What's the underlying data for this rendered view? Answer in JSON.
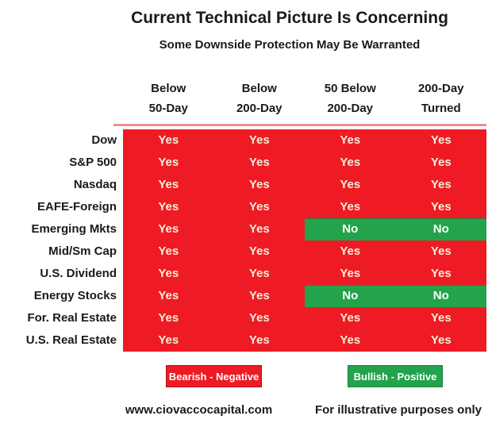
{
  "title": "Current Technical Picture Is Concerning",
  "subtitle": "Some Downside Protection May Be Warranted",
  "chart_data": {
    "type": "table",
    "title": "Current Technical Picture Is Concerning",
    "subtitle": "Some Downside Protection May Be Warranted",
    "columns": [
      "Below 50-Day",
      "Below 200-Day",
      "50 Below 200-Day",
      "200-Day Turned"
    ],
    "column_lines": [
      [
        "Below",
        "50-Day"
      ],
      [
        "Below",
        "200-Day"
      ],
      [
        "50 Below",
        "200-Day"
      ],
      [
        "200-Day",
        "Turned"
      ]
    ],
    "rows": [
      {
        "label": "Dow",
        "values": [
          "Yes",
          "Yes",
          "Yes",
          "Yes"
        ]
      },
      {
        "label": "S&P 500",
        "values": [
          "Yes",
          "Yes",
          "Yes",
          "Yes"
        ]
      },
      {
        "label": "Nasdaq",
        "values": [
          "Yes",
          "Yes",
          "Yes",
          "Yes"
        ]
      },
      {
        "label": "EAFE-Foreign",
        "values": [
          "Yes",
          "Yes",
          "Yes",
          "Yes"
        ]
      },
      {
        "label": "Emerging Mkts",
        "values": [
          "Yes",
          "Yes",
          "No",
          "No"
        ]
      },
      {
        "label": "Mid/Sm Cap",
        "values": [
          "Yes",
          "Yes",
          "Yes",
          "Yes"
        ]
      },
      {
        "label": "U.S. Dividend",
        "values": [
          "Yes",
          "Yes",
          "Yes",
          "Yes"
        ]
      },
      {
        "label": "Energy Stocks",
        "values": [
          "Yes",
          "Yes",
          "No",
          "No"
        ]
      },
      {
        "label": "For. Real Estate",
        "values": [
          "Yes",
          "Yes",
          "Yes",
          "Yes"
        ]
      },
      {
        "label": "U.S. Real Estate",
        "values": [
          "Yes",
          "Yes",
          "Yes",
          "Yes"
        ]
      }
    ],
    "cell_semantics": {
      "Yes": "bearish",
      "No": "bullish"
    },
    "legend": [
      {
        "label": "Bearish - Negative",
        "color": "#EE1B24"
      },
      {
        "label": "Bullish - Positive",
        "color": "#22A34C"
      }
    ],
    "layout": {
      "grid": "off",
      "legend_position": "bottom"
    }
  },
  "footer": {
    "website": "www.ciovaccocapital.com",
    "disclaimer": "For illustrative purposes only"
  },
  "colors": {
    "bearish_red": "#EE1B24",
    "bullish_green": "#22A34C",
    "yes_text": "#F6EFD9",
    "no_text": "#FFFFFF",
    "text": "#1A1A1A",
    "table_top_border": "#F08E8E",
    "background": "#FFFFFF"
  }
}
